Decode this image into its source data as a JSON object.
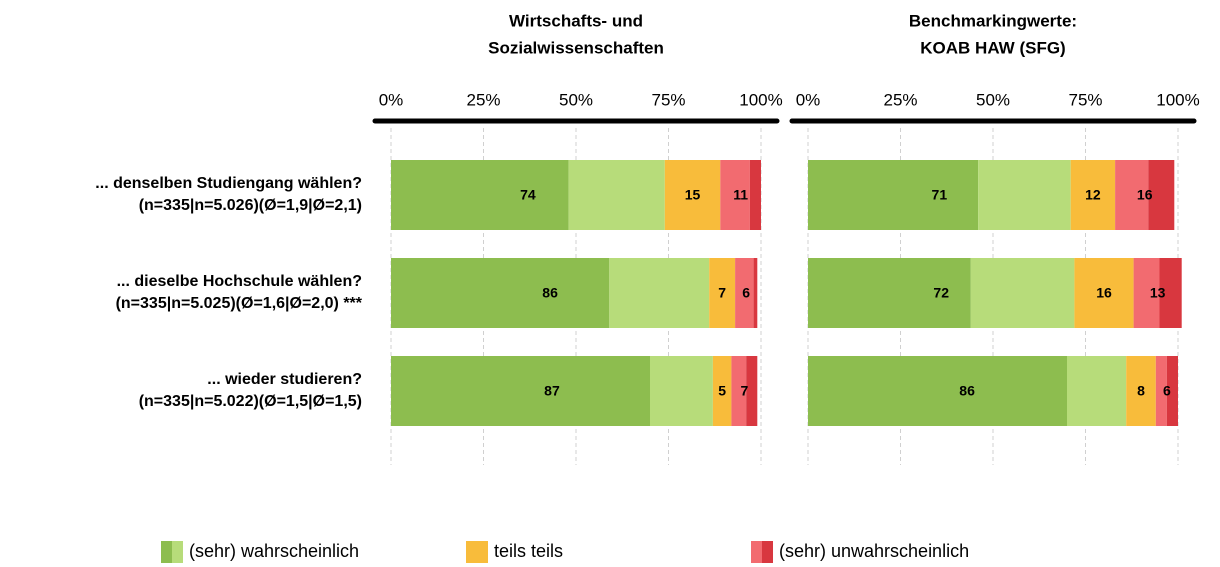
{
  "chart_data": {
    "type": "bar",
    "orientation": "horizontal",
    "stacked": true,
    "categories": [
      [
        "... denselben Studiengang wählen?",
        "(n=335|n=5.026)(Ø=1,9|Ø=2,1)"
      ],
      [
        "... dieselbe Hochschule wählen?",
        "(n=335|n=5.025)(Ø=1,6|Ø=2,0) ***"
      ],
      [
        "... wieder studieren?",
        "(n=335|n=5.022)(Ø=1,5|Ø=1,5)"
      ]
    ],
    "xlim": [
      0,
      100
    ],
    "xticks": [
      {
        "value": 0,
        "label": "0%"
      },
      {
        "value": 25,
        "label": "25%"
      },
      {
        "value": 50,
        "label": "50%"
      },
      {
        "value": 75,
        "label": "75%"
      },
      {
        "value": 100,
        "label": "100%"
      }
    ],
    "grid": true,
    "legend": "bottom",
    "series": [
      {
        "name": "(sehr) wahrscheinlich",
        "colors": [
          "#8dbd4f",
          "#b7dc7a"
        ]
      },
      {
        "name": "teils teils",
        "colors": [
          "#f8bc3b"
        ]
      },
      {
        "name": "(sehr) unwahrscheinlich",
        "colors": [
          "#f26b70",
          "#d8373f"
        ]
      }
    ],
    "panels": [
      {
        "title": [
          "Wirtschafts- und",
          "Sozialwissenschaften"
        ],
        "values": [
          [
            [
              48,
              26
            ],
            [
              15
            ],
            [
              8,
              3
            ]
          ],
          [
            [
              59,
              27
            ],
            [
              7
            ],
            [
              5,
              1
            ]
          ],
          [
            [
              70,
              17
            ],
            [
              5
            ],
            [
              4,
              3
            ]
          ]
        ],
        "labels": [
          [
            74,
            15,
            11
          ],
          [
            86,
            7,
            6
          ],
          [
            87,
            5,
            7
          ]
        ]
      },
      {
        "title": [
          "Benchmarkingwerte:",
          "KOAB HAW (SFG)"
        ],
        "values": [
          [
            [
              46,
              25
            ],
            [
              12
            ],
            [
              9,
              7
            ]
          ],
          [
            [
              44,
              28
            ],
            [
              16
            ],
            [
              7,
              6
            ]
          ],
          [
            [
              70,
              16
            ],
            [
              8
            ],
            [
              3,
              3
            ]
          ]
        ],
        "labels": [
          [
            71,
            12,
            16
          ],
          [
            72,
            16,
            13
          ],
          [
            86,
            8,
            6
          ]
        ]
      }
    ]
  }
}
